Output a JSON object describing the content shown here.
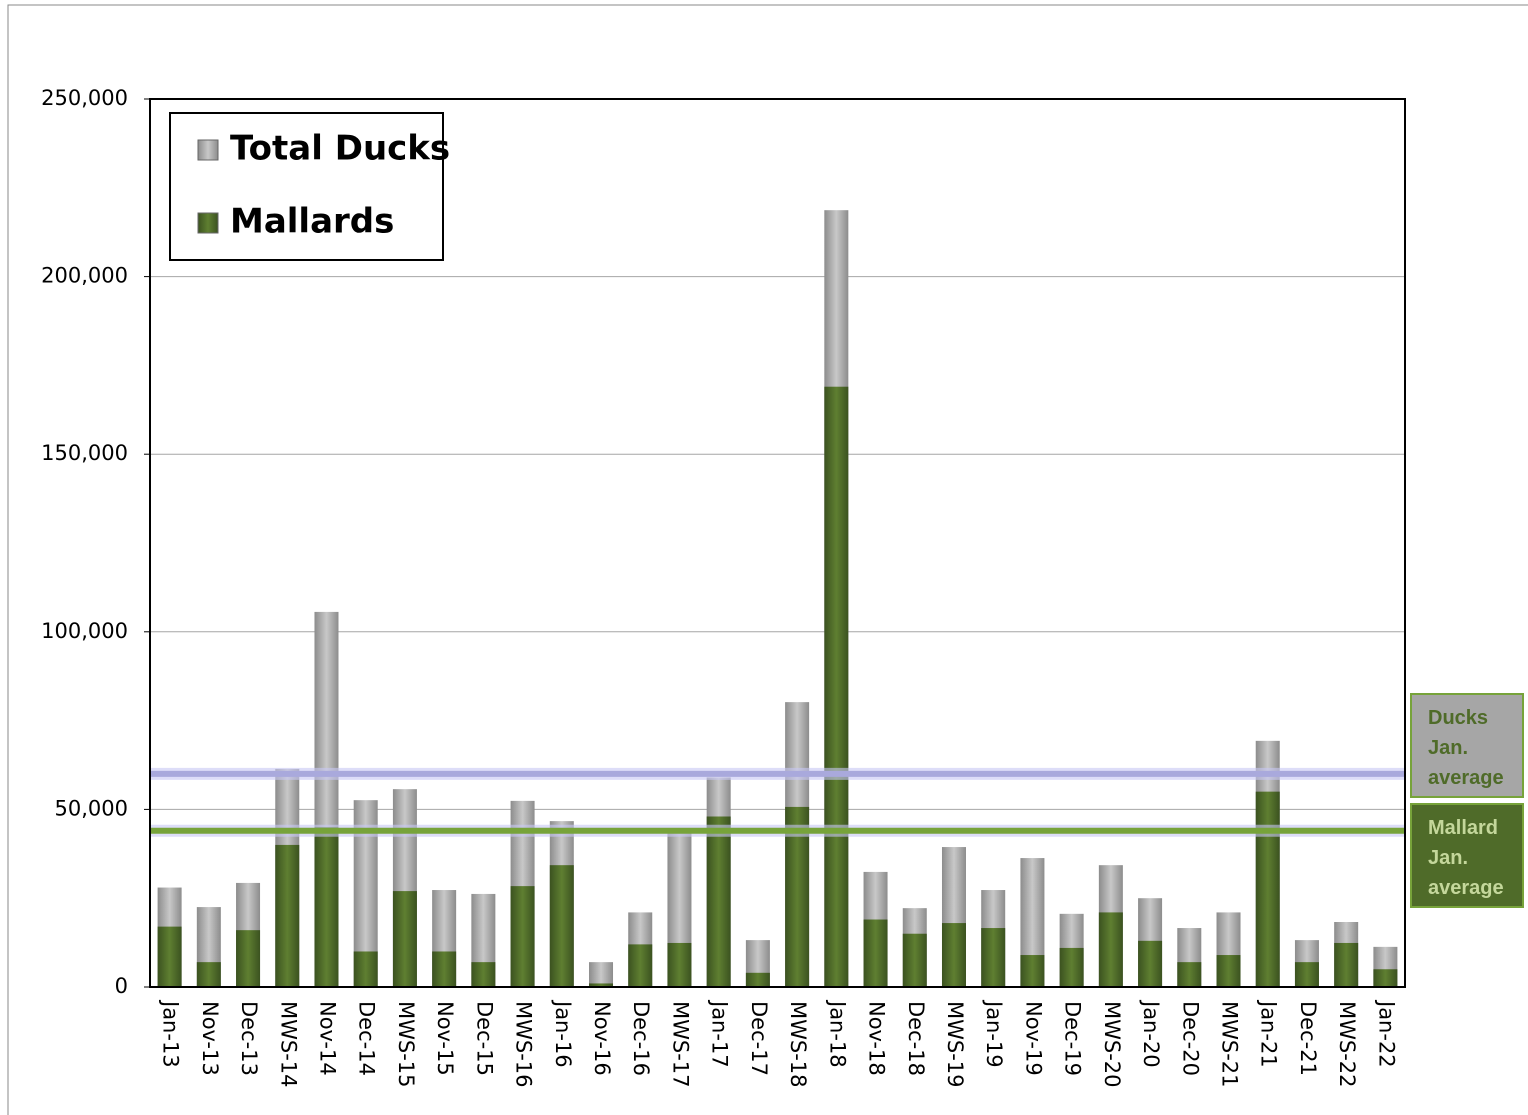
{
  "chart_data": {
    "type": "bar",
    "categories": [
      "Jan-13",
      "Nov-13",
      "Dec-13",
      "MWS-14",
      "Nov-14",
      "Dec-14",
      "MWS-15",
      "Nov-15",
      "Dec-15",
      "MWS-16",
      "Jan-16",
      "Nov-16",
      "Dec-16",
      "MWS-17",
      "Jan-17",
      "Dec-17",
      "MWS-18",
      "Jan-18",
      "Nov-18",
      "Dec-18",
      "MWS-19",
      "Jan-19",
      "Nov-19",
      "Dec-19",
      "MWS-20",
      "Jan-20",
      "Dec-20",
      "MWS-21",
      "Jan-21",
      "Dec-21",
      "MWS-22",
      "Jan-22"
    ],
    "series": [
      {
        "name": "Total Ducks",
        "color": "#a6a6a6",
        "values": [
          28000,
          22500,
          29300,
          61400,
          105600,
          52600,
          55700,
          27300,
          26200,
          52400,
          46700,
          7000,
          21000,
          43400,
          59000,
          13200,
          80200,
          218700,
          32400,
          22200,
          39400,
          27300,
          36300,
          20600,
          34300,
          25000,
          16600,
          21000,
          69300,
          13200,
          18300,
          11300
        ]
      },
      {
        "name": "Mallards",
        "color": "#4f6b29",
        "values": [
          17000,
          7000,
          16000,
          40000,
          45000,
          10000,
          27000,
          10000,
          7000,
          28400,
          34300,
          1000,
          12000,
          12400,
          48000,
          4000,
          50700,
          169000,
          19000,
          15000,
          18000,
          16600,
          9000,
          11000,
          21000,
          13000,
          7000,
          9000,
          55000,
          7000,
          12400,
          5000
        ]
      }
    ],
    "reference_lines": [
      {
        "label": "Ducks Jan. average",
        "value": 60000,
        "color": "#a9a9dc"
      },
      {
        "label": "Mallard Jan. average",
        "value": 44000,
        "color": "#77a33a"
      }
    ],
    "ylim": [
      0,
      250000
    ],
    "yticks": [
      0,
      {
        "value": 50000,
        "label": "50,000"
      },
      {
        "value": 100000,
        "label": "100,000"
      },
      {
        "value": 150000,
        "label": "150,000"
      },
      {
        "value": 200000,
        "label": "200,000"
      },
      {
        "value": 250000,
        "label": "250,000"
      }
    ],
    "grid": true,
    "legend": "upper-left"
  }
}
